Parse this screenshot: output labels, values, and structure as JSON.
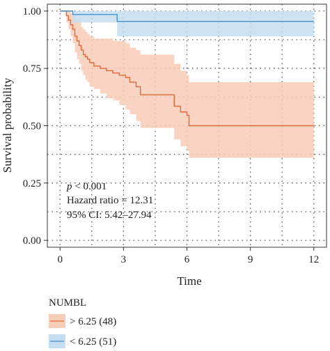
{
  "chart_data": {
    "type": "line",
    "subtype": "kaplan-meier",
    "xlabel": "Time",
    "ylabel": "Survival probability",
    "xlim": [
      -0.6,
      12.6
    ],
    "ylim": [
      -0.03,
      1.03
    ],
    "xticks": [
      0,
      3,
      6,
      9,
      12
    ],
    "xtick_labels": [
      "0",
      "3",
      "6",
      "9",
      "12"
    ],
    "yticks": [
      0,
      0.25,
      0.5,
      0.75,
      1.0
    ],
    "ytick_labels": [
      "0.00",
      "0.25",
      "0.50",
      "0.75",
      "1.00"
    ],
    "grid": true,
    "legend_title": "NUMBL",
    "legend_position": "bottom",
    "annotations": {
      "p_value_prefix": "p",
      "p_value_rest": " < 0.001",
      "hazard_ratio": "Hazard ratio = 12.31",
      "ci": "95% CI: 5.42–27.94"
    },
    "series": [
      {
        "name": "> 6.25 (48)",
        "color": "#e0693a",
        "band_color": "#f8cdb8",
        "x": [
          0,
          0.3,
          0.4,
          0.5,
          0.6,
          0.7,
          0.8,
          0.9,
          1.0,
          1.1,
          1.2,
          1.3,
          1.4,
          1.6,
          1.9,
          2.2,
          2.5,
          2.8,
          3.1,
          3.3,
          3.6,
          3.8,
          5.2,
          5.4,
          5.7,
          6.0,
          6.1,
          12.0
        ],
        "y": [
          1.0,
          0.98,
          0.96,
          0.94,
          0.92,
          0.89,
          0.87,
          0.85,
          0.83,
          0.81,
          0.8,
          0.79,
          0.775,
          0.76,
          0.75,
          0.74,
          0.73,
          0.72,
          0.71,
          0.69,
          0.67,
          0.635,
          0.635,
          0.585,
          0.56,
          0.545,
          0.5,
          0.5
        ],
        "lower": [
          1.0,
          0.95,
          0.92,
          0.89,
          0.86,
          0.82,
          0.79,
          0.77,
          0.74,
          0.72,
          0.7,
          0.69,
          0.67,
          0.66,
          0.64,
          0.62,
          0.61,
          0.59,
          0.57,
          0.55,
          0.52,
          0.49,
          0.49,
          0.44,
          0.41,
          0.39,
          0.36,
          0.36
        ],
        "upper": [
          1.0,
          1.0,
          1.0,
          0.99,
          0.98,
          0.97,
          0.96,
          0.95,
          0.93,
          0.92,
          0.91,
          0.9,
          0.89,
          0.88,
          0.88,
          0.88,
          0.87,
          0.87,
          0.86,
          0.84,
          0.83,
          0.81,
          0.81,
          0.77,
          0.74,
          0.72,
          0.69,
          0.69
        ]
      },
      {
        "name": "< 6.25 (51)",
        "color": "#4a90c8",
        "band_color": "#c4ddf1",
        "x": [
          0,
          0.6,
          2.7,
          12.0
        ],
        "y": [
          1.0,
          0.985,
          0.955,
          0.955
        ],
        "lower": [
          1.0,
          0.95,
          0.89,
          0.89
        ],
        "upper": [
          1.0,
          1.0,
          1.0,
          1.0
        ]
      }
    ]
  }
}
